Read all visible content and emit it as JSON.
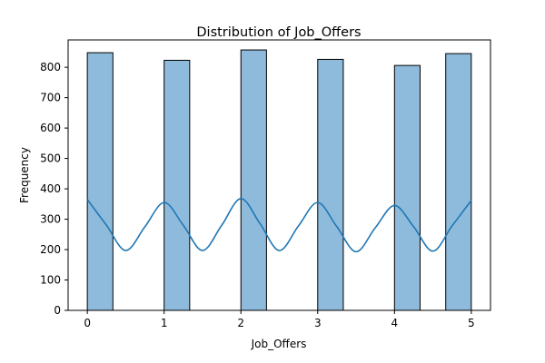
{
  "chart_data": {
    "type": "bar",
    "title": "Distribution of Job_Offers",
    "xlabel": "Job_Offers",
    "ylabel": "Frequency",
    "xlim": [
      -0.25,
      5.25
    ],
    "ylim": [
      0,
      890
    ],
    "xticks": [
      0,
      1,
      2,
      3,
      4,
      5
    ],
    "yticks": [
      0,
      100,
      200,
      300,
      400,
      500,
      600,
      700,
      800
    ],
    "bars": [
      {
        "x0": 0.0,
        "x1": 0.333,
        "value": 848
      },
      {
        "x0": 1.0,
        "x1": 1.333,
        "value": 823
      },
      {
        "x0": 2.0,
        "x1": 2.333,
        "value": 857
      },
      {
        "x0": 3.0,
        "x1": 3.333,
        "value": 826
      },
      {
        "x0": 4.0,
        "x1": 4.333,
        "value": 806
      },
      {
        "x0": 4.667,
        "x1": 5.0,
        "value": 845
      }
    ],
    "kde": {
      "x": [
        0,
        0.25,
        0.5,
        0.75,
        1,
        1.25,
        1.5,
        1.75,
        2,
        2.25,
        2.5,
        2.75,
        3,
        3.25,
        3.5,
        3.75,
        4,
        4.25,
        4.5,
        4.75,
        5
      ],
      "y": [
        365,
        280,
        197,
        275,
        355,
        280,
        197,
        280,
        368,
        285,
        197,
        278,
        355,
        275,
        193,
        272,
        345,
        275,
        195,
        278,
        362
      ]
    },
    "bar_color": "#8ebbdc",
    "bar_edge_color": "#000000",
    "line_color": "#1f77b4",
    "grid": false,
    "legend": "none"
  }
}
